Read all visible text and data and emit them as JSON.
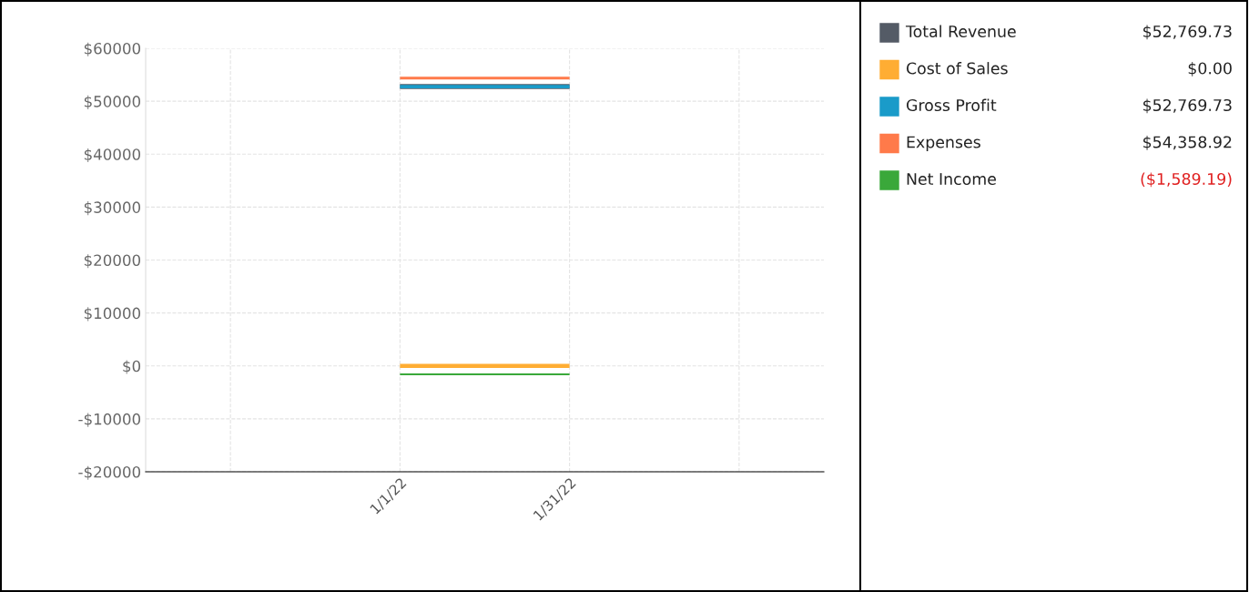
{
  "chart_data": {
    "type": "line",
    "categories": [
      null,
      "1/1/22",
      "1/31/22",
      null
    ],
    "series": [
      {
        "name": "Total Revenue",
        "color": "#545b66",
        "values": [
          null,
          52769.73,
          52769.73,
          null
        ]
      },
      {
        "name": "Cost of Sales",
        "color": "#ffad33",
        "values": [
          null,
          0,
          0,
          null
        ]
      },
      {
        "name": "Gross Profit",
        "color": "#1a9bc9",
        "values": [
          null,
          52769.73,
          52769.73,
          null
        ]
      },
      {
        "name": "Expenses",
        "color": "#ff7a4a",
        "values": [
          null,
          54358.92,
          54358.92,
          null
        ]
      },
      {
        "name": "Net Income",
        "color": "#3aa83a",
        "values": [
          null,
          -1589.19,
          -1589.19,
          null
        ]
      }
    ],
    "annotations": [
      "$52,769.73",
      "$0.00",
      "$52,769.73",
      "$54,358.92",
      "($1,589.19)"
    ],
    "ylim": [
      -20000,
      60000
    ],
    "yticks": [
      {
        "value": -20000,
        "label": "-$20000"
      },
      {
        "value": -10000,
        "label": "-$10000"
      },
      {
        "value": 0,
        "label": "$0"
      },
      {
        "value": 10000,
        "label": "$10000"
      },
      {
        "value": 20000,
        "label": "$20000"
      },
      {
        "value": 30000,
        "label": "$30000"
      },
      {
        "value": 40000,
        "label": "$40000"
      },
      {
        "value": 50000,
        "label": "$50000"
      },
      {
        "value": 60000,
        "label": "$60000"
      }
    ],
    "grid": true,
    "legend": "right",
    "marker": "none",
    "line_style": "solid"
  }
}
